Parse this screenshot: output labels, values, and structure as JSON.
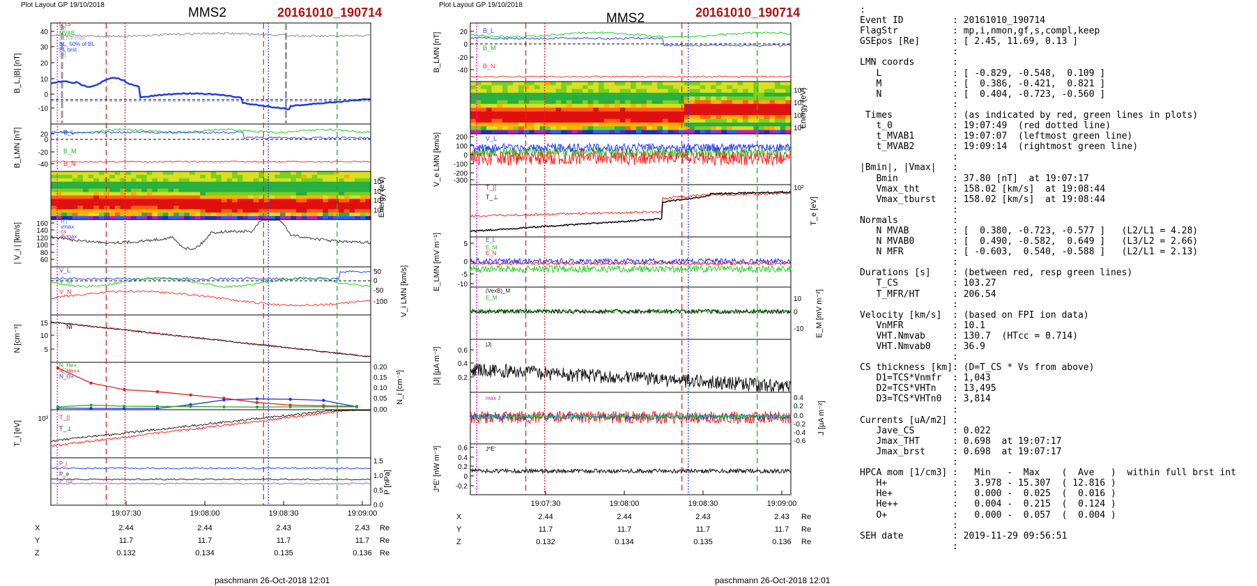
{
  "left_plot": {
    "header": "Plot Layout GP 19/10/2018",
    "spacecraft": "MMS2",
    "event": "20161010_190714",
    "footer": "paschmann 26-Oct-2018 12:01",
    "time_ticks": [
      "19:07:30",
      "19:08:00",
      "19:08:30",
      "19:09:00"
    ],
    "coords": {
      "rows": [
        {
          "name": "X",
          "vals": [
            "2.44",
            "2.44",
            "2.43",
            "2.43"
          ],
          "unit": "Re"
        },
        {
          "name": "Y",
          "vals": [
            "11.7",
            "11.7",
            "11.7",
            "11.7"
          ],
          "unit": "Re"
        },
        {
          "name": "Z",
          "vals": [
            "0.132",
            "0.134",
            "0.135",
            "0.136"
          ],
          "unit": "Re"
        }
      ]
    },
    "panels": [
      {
        "ylabel": "B_L,|B| [nT]",
        "yticks": [
          "40",
          "30",
          "20",
          "10",
          "0",
          "-10"
        ],
        "legend": [
          "L_cs",
          "|B|",
          "MVAB",
          "BLminmax",
          "BL, 50% of BL",
          "BL brst",
          "|B|"
        ]
      },
      {
        "ylabel": "B_LMN [nT]",
        "yticks": [
          "40",
          "20",
          "0",
          "-20",
          "-40"
        ],
        "legend": [
          "B_L",
          "B_M",
          "B_N"
        ]
      },
      {
        "ylabel": "Energy (eV)",
        "yticks_right": [
          "10^4",
          "10^3",
          "10^2",
          "10^1"
        ]
      },
      {
        "ylabel": "| V_i | [km/s]",
        "yticks": [
          "160",
          "140",
          "120",
          "100",
          "80",
          "60",
          "40"
        ],
        "legend": [
          "HT",
          "Vmax",
          "cs",
          "dvmax"
        ]
      },
      {
        "ylabel": "V_i LMN [km/s]",
        "yticks_right": [
          "50",
          "0",
          "-50",
          "-100"
        ],
        "legend": [
          "V_L",
          "V_M",
          "V_N"
        ]
      },
      {
        "ylabel": "N [cm^-3]",
        "yticks": [
          "15",
          "10",
          "5"
        ],
        "legend": [
          "Ni"
        ]
      },
      {
        "ylabel": "N_i [cm^-3]",
        "yticks_right": [
          "0.20",
          "0.15",
          "0.10",
          "0.05",
          "0.00"
        ],
        "legend": [
          "N_He+",
          "N_He++",
          "N_O+"
        ]
      },
      {
        "ylabel": "T_i [eV]",
        "yticks": [
          "10^3"
        ],
        "legend": [
          "T_||",
          "T_⊥"
        ]
      },
      {
        "ylabel": "P [nPa]",
        "yticks_right": [
          "1.5",
          "1.0",
          "0.5",
          "0.0"
        ],
        "legend": [
          "P_i",
          "P_e",
          "P_tot"
        ]
      }
    ]
  },
  "right_plot": {
    "header": "Plot Layout GP 19/10/2018",
    "spacecraft": "MMS2",
    "event": "20161010_190714",
    "footer": "paschmann 26-Oct-2018 12:01",
    "time_ticks": [
      "19:07:30",
      "19:08:00",
      "19:08:30",
      "19:09:00"
    ],
    "coords": {
      "rows": [
        {
          "name": "X",
          "vals": [
            "2.44",
            "2.44",
            "2.43",
            "2.43"
          ],
          "unit": "Re"
        },
        {
          "name": "Y",
          "vals": [
            "11.7",
            "11.7",
            "11.7",
            "11.7"
          ],
          "unit": "Re"
        },
        {
          "name": "Z",
          "vals": [
            "0.132",
            "0.134",
            "0.135",
            "0.136"
          ],
          "unit": "Re"
        }
      ]
    },
    "panels": [
      {
        "ylabel": "B_LMN [nT]",
        "yticks": [
          "20",
          "0",
          "-20",
          "-40"
        ],
        "legend": [
          "B_L",
          "B_M",
          "B_N"
        ]
      },
      {
        "ylabel": "Energy (eV)",
        "yticks_right": [
          "10^4",
          "10^3",
          "10^2",
          "10^1"
        ]
      },
      {
        "ylabel": "V_e LMN [km/s]",
        "yticks": [
          "200",
          "100",
          "0",
          "-100",
          "-200",
          "-300"
        ],
        "legend": [
          "V_L",
          "V_M",
          "V_N"
        ]
      },
      {
        "ylabel": "T_e [eV]",
        "yticks_right": [
          "10^2"
        ],
        "legend": [
          "T_||",
          "T_⊥"
        ]
      },
      {
        "ylabel": "E_LMN [mV m^-1]",
        "yticks": [
          "5",
          "0",
          "-5",
          "-10"
        ],
        "legend": [
          "E_L",
          "E_M",
          "E_N"
        ]
      },
      {
        "ylabel": "E_M [mV m^-1]",
        "yticks_right": [
          "10",
          "0",
          "-10"
        ],
        "legend": [
          "(VexB)_M",
          "E_M"
        ]
      },
      {
        "ylabel": "|J| [µA m^-2]",
        "yticks": [
          "0.6",
          "0.4",
          "0.2"
        ],
        "legend": [
          "|J|"
        ]
      },
      {
        "ylabel": "J [µA m^-2]",
        "yticks_right": [
          "0.4",
          "0.2",
          "0.0",
          "-0.2",
          "-0.4",
          "-0.6"
        ],
        "legend": [
          "J_L",
          "J_M",
          "J_N",
          "max J"
        ]
      },
      {
        "ylabel": "J*E' [nW m^-3]",
        "yticks": [
          "0.6",
          "0.4",
          "0.2",
          "0.0",
          "-0.2"
        ],
        "legend": [
          "J*E'"
        ]
      }
    ]
  },
  "info_lines": [
    ":",
    "Event ID         : 20161010_190714",
    "FlagStr          : mp,i,nmon,gf,s,compl,keep",
    "GSEpos [Re]      : [ 2.45, 11.69, 0.13 ]",
    "                 :",
    "LMN coords       :",
    "   L             : [ -0.829, -0.548,  0.109 ]",
    "   M             : [  0.386, -0.421,  0.821 ]",
    "   N             : [  0.404, -0.723, -0.560 ]",
    "                 :",
    " Times           : (as indicated by red, green lines in plots)",
    "   t_0           : 19:07:49  (red dotted line)",
    "   t_MVAB1       : 19:07:07  (leftmost green line)",
    "   t_MVAB2       : 19:09:14  (rightmost green line)",
    "                 :",
    "|Bmin|, |Vmax|   :",
    "   Bmin          : 37.80 [nT]  at 19:07:17",
    "   Vmax_tht      : 158.02 [km/s]  at 19:08:44",
    "   Vmax_tburst   : 158.02 [km/s]  at 19:08:44",
    "                 :",
    "Normals          :",
    "   N MVAB        : [  0.380, -0.723, -0.577 ]   (L2/L1 = 4.28)",
    "   N MVAB0       : [  0.490, -0.582,  0.649 ]   (L3/L2 = 2.66)",
    "   N MFR         : [ -0.603,  0.540, -0.588 ]   (L2/L1 = 2.13)",
    "                 :",
    "Durations [s]    : (between red, resp green lines)",
    "   T_CS          : 103.27",
    "   T_MFR/HT      : 206.54",
    "                 :",
    "Velocity [km/s]  : (based on FPI ion data)",
    "   VnMFR         : 10.1",
    "   VHT.Nmvab     : 130.7  (HTcc = 0.714)",
    "   VHT.Nmvab0    : 36.9",
    "                 :",
    "CS thickness [km]: (D=T_CS * Vs from above)",
    "   D1=TCS*Vnmfr  : 1,043",
    "   D2=TCS*VHTn   : 13,495",
    "   D3=TCS*VHTn0  : 3,814",
    "                 :",
    "Currents [uA/m2] :",
    "   Jave_CS       : 0.022",
    "   Jmax_THT      : 0.698  at 19:07:17",
    "   Jmax_brst     : 0.698  at 19:07:17",
    "                 :",
    "HPCA mom [1/cm3] :   Min   -  Max    (  Ave   )  within full brst int",
    "   H+            :   3.978 - 15.307  ( 12.816 )",
    "   He+           :   0.000 -  0.025  (  0.016 )",
    "   He++          :   0.004 -  0.215  (  0.124 )",
    "   O+            :   0.000 -  0.057  (  0.004 )",
    "                 :",
    "SEH date         : 2019-11-29 09:56:51",
    "                 :"
  ],
  "chart_data": [
    {
      "type": "line",
      "title": "MMS2 20161010_190714",
      "x_ticks": [
        "19:07:30",
        "19:08:00",
        "19:08:30",
        "19:09:00"
      ],
      "marker_lines": {
        "red_dashed": [
          "19:07:31",
          "19:08:44"
        ],
        "red_dotted": "19:07:49",
        "green_dashed": [
          "19:07:07",
          "19:09:14"
        ]
      },
      "series": [
        {
          "name": "|B|",
          "values": [
            41,
            41,
            40,
            41,
            40,
            40,
            41,
            40,
            38,
            40,
            40,
            41
          ]
        },
        {
          "name": "BL brst",
          "values": [
            10,
            8,
            9,
            2,
            1,
            3,
            5,
            3,
            1,
            -7,
            -5,
            -3
          ]
        }
      ]
    },
    {
      "type": "scatter",
      "ylabel": "N_i [cm^-3]",
      "ylim": [
        0,
        0.2
      ],
      "series": [
        {
          "name": "He++",
          "values": [
            0.19,
            0.12,
            0.09,
            0.08,
            0.065,
            0.05,
            0.03,
            0.018,
            0.015,
            0.012
          ]
        },
        {
          "name": "O+",
          "values": [
            0.005,
            0.003,
            0.003,
            0.003,
            0.02,
            0.042,
            0.047,
            0.045,
            0.04,
            0.01
          ]
        },
        {
          "name": "He+",
          "values": [
            0.01,
            0.018,
            0.013,
            0.012,
            0.012,
            0.01,
            0.009,
            0.01,
            0.01,
            0.01
          ]
        }
      ]
    }
  ]
}
